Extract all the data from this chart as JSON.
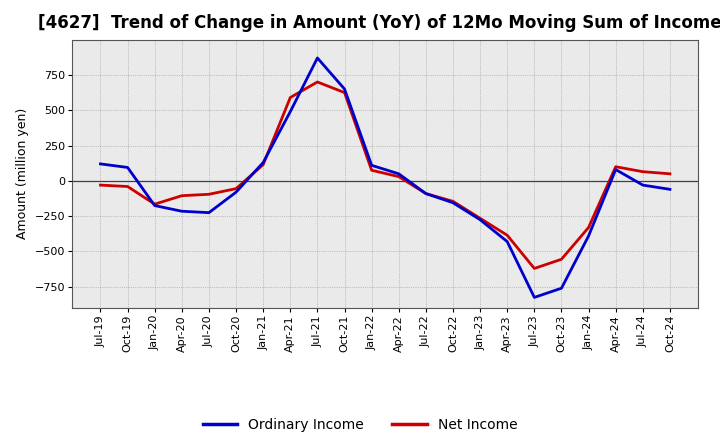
{
  "title": "[4627]  Trend of Change in Amount (YoY) of 12Mo Moving Sum of Incomes",
  "ylabel": "Amount (million yen)",
  "x_labels": [
    "Jul-19",
    "Oct-19",
    "Jan-20",
    "Apr-20",
    "Jul-20",
    "Oct-20",
    "Jan-21",
    "Apr-21",
    "Jul-21",
    "Oct-21",
    "Jan-22",
    "Apr-22",
    "Jul-22",
    "Oct-22",
    "Jan-23",
    "Apr-23",
    "Jul-23",
    "Oct-23",
    "Jan-24",
    "Apr-24",
    "Jul-24",
    "Oct-24"
  ],
  "ordinary_income": [
    120,
    95,
    -175,
    -215,
    -225,
    -80,
    130,
    490,
    870,
    650,
    110,
    50,
    -90,
    -155,
    -275,
    -430,
    -825,
    -760,
    -390,
    80,
    -30,
    -60
  ],
  "net_income": [
    -30,
    -40,
    -165,
    -105,
    -95,
    -55,
    115,
    590,
    700,
    625,
    75,
    30,
    -90,
    -145,
    -265,
    -385,
    -620,
    -555,
    -330,
    100,
    65,
    50
  ],
  "ordinary_color": "#0000CC",
  "net_color": "#CC0000",
  "bg_color": "#FFFFFF",
  "plot_bg_color": "#EAEAEA",
  "ylim": [
    -900,
    1000
  ],
  "yticks": [
    -750,
    -500,
    -250,
    0,
    250,
    500,
    750
  ],
  "legend_ordinary": "Ordinary Income",
  "legend_net": "Net Income",
  "title_fontsize": 12,
  "axis_fontsize": 9,
  "tick_fontsize": 8,
  "line_width": 2.0
}
